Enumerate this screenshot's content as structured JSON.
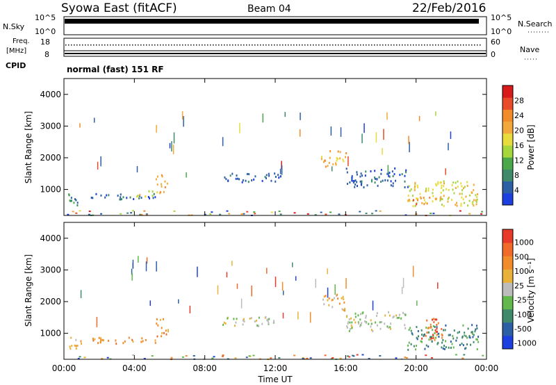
{
  "header": {
    "title": "Syowa East (fitACF)",
    "beam": "Beam 04",
    "date": "22/Feb/2016"
  },
  "panels": {
    "nsky": {
      "label": "N.Sky",
      "tick_top": "10^5",
      "tick_bottom": "10^0",
      "right_label": "N.Search",
      "right_tick_top": "10^5",
      "right_tick_bottom": "10^0"
    },
    "freq": {
      "label_line1": "Freq.",
      "label_line2": "[MHz]",
      "tick_top": "18",
      "tick_bottom": "8",
      "right_label": "Nave",
      "right_tick_top": "60",
      "right_tick_bottom": "0"
    },
    "cpid": {
      "label": "CPID",
      "text": "normal (fast) 151 RF"
    }
  },
  "chart_data": [
    {
      "type": "heatmap",
      "name": "power",
      "ylabel": "Slant Range [km]",
      "xlabel": "",
      "x_ticks": [
        "00:00",
        "04:00",
        "08:00",
        "12:00",
        "16:00",
        "20:00",
        "00:00"
      ],
      "y_ticks": [
        "1000",
        "2000",
        "3000",
        "4000"
      ],
      "xlim_hours": [
        0,
        24
      ],
      "ylim_km": [
        180,
        4500
      ],
      "colorbar": {
        "label": "Power [dB]",
        "ticks": [
          "4",
          "8",
          "12",
          "16",
          "20",
          "24",
          "28"
        ],
        "colors": [
          "#1d3fe0",
          "#2d5fa5",
          "#3f8a6a",
          "#4aa84a",
          "#a5d63c",
          "#e8dc3c",
          "#f2a83a",
          "#f28b2a",
          "#e84a2a",
          "#d81a1a"
        ]
      },
      "regions": [
        {
          "t0": 0.2,
          "t1": 1.0,
          "r0": 500,
          "r1": 900,
          "level": 2
        },
        {
          "t0": 1.5,
          "t1": 5.2,
          "r0": 700,
          "r1": 900,
          "level": 1
        },
        {
          "t0": 4.0,
          "t1": 5.2,
          "r0": 800,
          "r1": 1000,
          "level": 5
        },
        {
          "t0": 5.2,
          "t1": 5.9,
          "r0": 900,
          "r1": 1500,
          "level": 6
        },
        {
          "t0": 9.0,
          "t1": 12.3,
          "r0": 1250,
          "r1": 1550,
          "level": 1
        },
        {
          "t0": 14.6,
          "t1": 16.0,
          "r0": 1750,
          "r1": 2250,
          "level": 6
        },
        {
          "t0": 16.0,
          "t1": 19.5,
          "r0": 1100,
          "r1": 1700,
          "level": 1
        },
        {
          "t0": 19.5,
          "t1": 23.5,
          "r0": 500,
          "r1": 1300,
          "level": 5
        },
        {
          "t0": 19.8,
          "t1": 21.5,
          "r0": 550,
          "r1": 800,
          "level": 7
        }
      ]
    },
    {
      "type": "heatmap",
      "name": "velocity",
      "ylabel": "Slant Range [km]",
      "xlabel": "Time UT",
      "x_ticks": [
        "00:00",
        "04:00",
        "08:00",
        "12:00",
        "16:00",
        "20:00",
        "00:00"
      ],
      "y_ticks": [
        "1000",
        "2000",
        "3000",
        "4000"
      ],
      "xlim_hours": [
        0,
        24
      ],
      "ylim_km": [
        180,
        4500
      ],
      "colorbar": {
        "label": "Velocity [m s⁻¹]",
        "ticks": [
          "1000",
          "500",
          "100",
          "25",
          "-25",
          "-100",
          "-500",
          "-1000"
        ],
        "colors": [
          "#1d3fe0",
          "#2d5fa5",
          "#3f8a6a",
          "#62b84c",
          "#bcbcbc",
          "#e8b23a",
          "#f28b2a",
          "#f26a2a",
          "#e83a2a"
        ]
      },
      "regions": [
        {
          "t0": 0.2,
          "t1": 1.0,
          "r0": 500,
          "r1": 900,
          "level": 5
        },
        {
          "t0": 1.5,
          "t1": 5.2,
          "r0": 700,
          "r1": 900,
          "level": 6
        },
        {
          "t0": 5.2,
          "t1": 5.9,
          "r0": 900,
          "r1": 1500,
          "level": 6
        },
        {
          "t0": 9.0,
          "t1": 12.3,
          "r0": 1250,
          "r1": 1550,
          "level": 4
        },
        {
          "t0": 14.6,
          "t1": 16.0,
          "r0": 1750,
          "r1": 2250,
          "level": 5
        },
        {
          "t0": 16.0,
          "t1": 19.5,
          "r0": 1100,
          "r1": 1700,
          "level": 4
        },
        {
          "t0": 19.5,
          "t1": 23.5,
          "r0": 500,
          "r1": 1300,
          "level": 2
        },
        {
          "t0": 20.2,
          "t1": 21.5,
          "r0": 800,
          "r1": 1500,
          "level": 7
        }
      ]
    }
  ]
}
